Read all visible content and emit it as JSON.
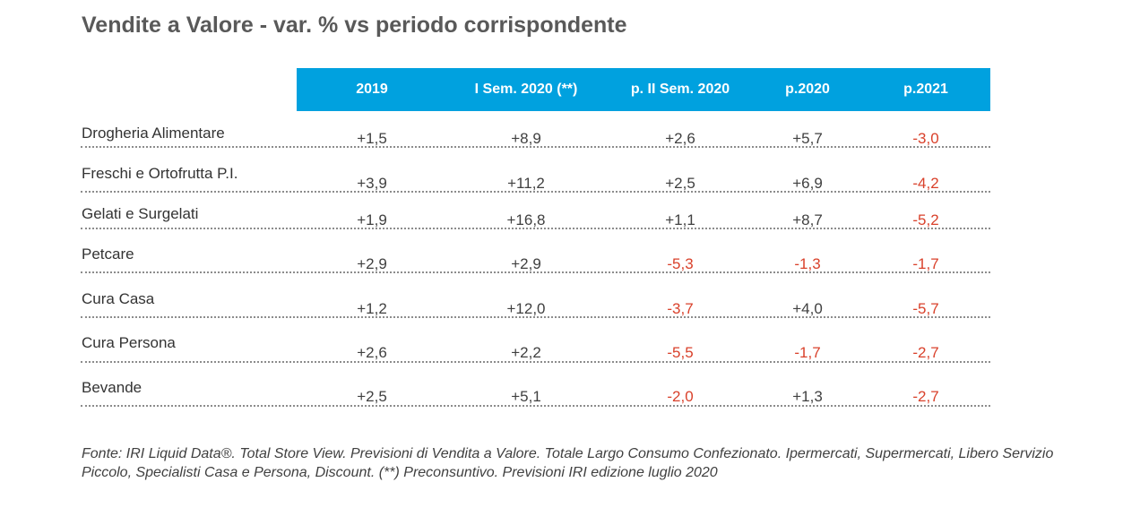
{
  "title": "Vendite a Valore - var. % vs periodo corrispondente",
  "table": {
    "header_color": "#00a1df",
    "negative_color": "#d9412b",
    "columns": [
      "2019",
      "I Sem. 2020 (**)",
      "p. II Sem. 2020",
      "p.2020",
      "p.2021"
    ],
    "rows": [
      {
        "label": "Drogheria Alimentare",
        "values": [
          "+1,5",
          "+8,9",
          "+2,6",
          "+5,7",
          "-3,0"
        ]
      },
      {
        "label": "Freschi e Ortofrutta P.I.",
        "values": [
          "+3,9",
          "+11,2",
          "+2,5",
          "+6,9",
          "-4,2"
        ]
      },
      {
        "label": "Gelati e Surgelati",
        "values": [
          "+1,9",
          "+16,8",
          "+1,1",
          "+8,7",
          "-5,2"
        ]
      },
      {
        "label": "Petcare",
        "values": [
          "+2,9",
          "+2,9",
          "-5,3",
          "-1,3",
          "-1,7"
        ]
      },
      {
        "label": "Cura Casa",
        "values": [
          "+1,2",
          "+12,0",
          "-3,7",
          "+4,0",
          "-5,7"
        ]
      },
      {
        "label": "Cura Persona",
        "values": [
          "+2,6",
          "+2,2",
          "-5,5",
          "-1,7",
          "-2,7"
        ]
      },
      {
        "label": "Bevande",
        "values": [
          "+2,5",
          "+5,1",
          "-2,0",
          "+1,3",
          "-2,7"
        ]
      }
    ]
  },
  "footnote": "Fonte: IRI Liquid Data®. Total Store View. Previsioni di Vendita a Valore. Totale Largo Consumo Confezionato. Ipermercati, Supermercati, Libero Servizio Piccolo, Specialisti Casa e Persona, Discount.  (**) Preconsuntivo. Previsioni IRI edizione luglio 2020"
}
